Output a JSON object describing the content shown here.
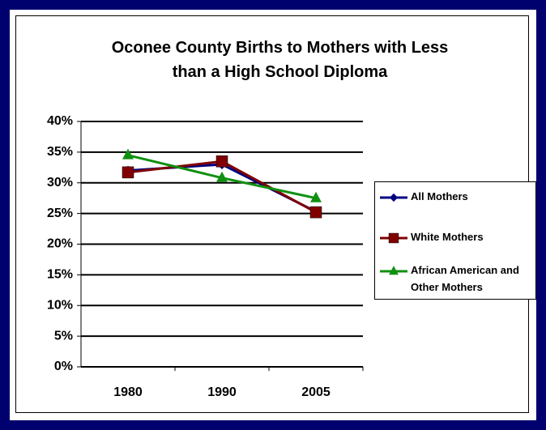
{
  "chart_data": {
    "type": "line",
    "title": "Oconee County Births to Mothers with Less than a High School Diploma",
    "categories": [
      "1980",
      "1990",
      "2005"
    ],
    "series": [
      {
        "name": "All Mothers",
        "color": "#000080",
        "marker": "diamond",
        "values": [
          32.0,
          33.0,
          25.3
        ]
      },
      {
        "name": "White Mothers",
        "color": "#800000",
        "marker": "square",
        "values": [
          31.7,
          33.5,
          25.2
        ]
      },
      {
        "name": "African American and Other Mothers",
        "color": "#109010",
        "marker": "triangle",
        "values": [
          34.5,
          30.8,
          27.5
        ]
      }
    ],
    "ylim": [
      0,
      40
    ],
    "yticks": [
      {
        "value": 0,
        "label": "0%"
      },
      {
        "value": 5,
        "label": "5%"
      },
      {
        "value": 10,
        "label": "10%"
      },
      {
        "value": 15,
        "label": "15%"
      },
      {
        "value": 20,
        "label": "20%"
      },
      {
        "value": 25,
        "label": "25%"
      },
      {
        "value": 30,
        "label": "30%"
      },
      {
        "value": 35,
        "label": "35%"
      },
      {
        "value": 40,
        "label": "40%"
      }
    ],
    "grid": true,
    "legend": "right"
  }
}
